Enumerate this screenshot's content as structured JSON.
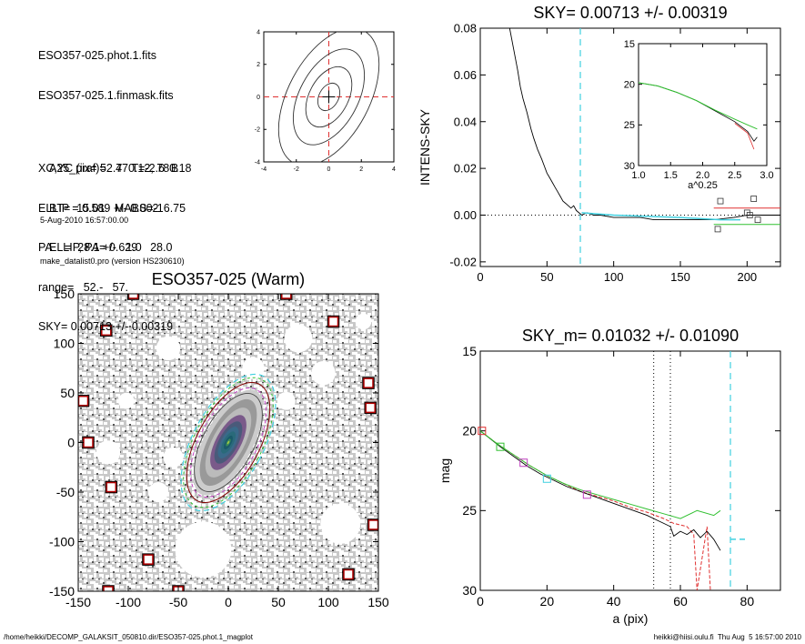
{
  "info": {
    "lines_main": [
      "ESO357-025.phot.1.fits",
      "ESO357-025.1.finmask.fits",
      "",
      "XC,YC (iraf)=   470.12, 780.18",
      "ELLIP = 0.589 +/- 0.002",
      "PA    =  28.1 +/-   1.0",
      "range=   52.-   57.",
      "SKY= 0.00713 +/- 0.00319"
    ],
    "lines_sub": [
      "A25_pix= 52.7   T=-2.6  B",
      "BT=  15.01   MABS=-16.75",
      "ELLIP, PA= 0.629    28.0"
    ],
    "date": "5-Aug-2010 16:57:00.00",
    "program": "make_datalist0.pro (version HS230610)"
  },
  "footer": {
    "left": "/home/heikki/DECOMP_GALAKSIT_050810.dir/ESO357-025.phot.1_magplot",
    "right": "heikki@hiisi.oulu.fi  Thu Aug  5 16:57:00 2010"
  },
  "colors": {
    "red": "#e03030",
    "green": "#30c030",
    "cyan": "#40d0e0",
    "purple": "#c040c0",
    "dark_red": "#800000",
    "gray": "#888888"
  },
  "chart_data": [
    {
      "id": "center-contour",
      "type": "contour",
      "xlim": [
        -4,
        4
      ],
      "ylim": [
        -4,
        4
      ],
      "xticks": [
        -4,
        -2,
        0,
        2,
        4
      ],
      "yticks": [
        -4,
        -2,
        0,
        2,
        4
      ],
      "marker": [
        0,
        0
      ]
    },
    {
      "id": "sky-profile",
      "type": "line",
      "title": "SKY= 0.00713 +/- 0.00319",
      "xlabel": "",
      "ylabel": "INTENS-SKY",
      "xlim": [
        0,
        225
      ],
      "ylim": [
        -0.022,
        0.08
      ],
      "xticks": [
        0,
        50,
        100,
        150,
        200
      ],
      "yticks": [
        -0.02,
        0.0,
        0.02,
        0.04,
        0.06,
        0.08
      ],
      "ytick_labels": [
        "-0.02",
        "0.00",
        "0.02",
        "0.04",
        "0.06",
        "0.08"
      ],
      "vline": 75,
      "series_black": [
        [
          22,
          0.08
        ],
        [
          25,
          0.071
        ],
        [
          28,
          0.062
        ],
        [
          30,
          0.055
        ],
        [
          32,
          0.05
        ],
        [
          35,
          0.044
        ],
        [
          38,
          0.037
        ],
        [
          40,
          0.033
        ],
        [
          43,
          0.028
        ],
        [
          46,
          0.024
        ],
        [
          48,
          0.021
        ],
        [
          50,
          0.018
        ],
        [
          52,
          0.016
        ],
        [
          54,
          0.014
        ],
        [
          56,
          0.012
        ],
        [
          58,
          0.01
        ],
        [
          60,
          0.008
        ],
        [
          62,
          0.006
        ],
        [
          64,
          0.005
        ],
        [
          66,
          0.004
        ],
        [
          68,
          0.003
        ],
        [
          70,
          0.004
        ],
        [
          72,
          0.002
        ],
        [
          74,
          0.001
        ],
        [
          76,
          0.0
        ],
        [
          80,
          0.001
        ],
        [
          85,
          0.0
        ],
        [
          90,
          0.0
        ],
        [
          100,
          -0.001
        ],
        [
          110,
          -0.001
        ],
        [
          120,
          -0.001
        ],
        [
          130,
          -0.002
        ],
        [
          140,
          -0.002
        ],
        [
          150,
          -0.002
        ],
        [
          160,
          -0.002
        ],
        [
          175,
          -0.002
        ],
        [
          190,
          -0.001
        ],
        [
          200,
          0.0
        ],
        [
          210,
          0.0
        ],
        [
          225,
          0.0
        ]
      ],
      "series_cyan": [
        [
          76,
          0.001
        ],
        [
          100,
          0.0
        ],
        [
          150,
          -0.001
        ],
        [
          180,
          -0.002
        ],
        [
          195,
          -0.002
        ]
      ],
      "series_green": [
        [
          175,
          -0.004
        ],
        [
          225,
          -0.004
        ]
      ],
      "series_red": [
        [
          175,
          0.003
        ],
        [
          225,
          0.003
        ]
      ],
      "squares": [
        [
          178,
          -0.006
        ],
        [
          180,
          0.006
        ],
        [
          200,
          0.001
        ],
        [
          202,
          0.0
        ],
        [
          205,
          0.007
        ],
        [
          208,
          -0.002
        ]
      ]
    },
    {
      "id": "inset-profile",
      "type": "line",
      "xlabel": "a^0.25",
      "xlim": [
        1.0,
        3.0
      ],
      "ylim": [
        30,
        15
      ],
      "xticks": [
        1.0,
        1.5,
        2.0,
        2.5,
        3.0
      ],
      "xtick_labels": [
        "1.0",
        "1.5",
        "2.0",
        "2.5",
        "3.0"
      ],
      "yticks": [
        15,
        20,
        25,
        30
      ],
      "series_green": [
        [
          1.0,
          19.8
        ],
        [
          1.3,
          20.2
        ],
        [
          1.6,
          21.0
        ],
        [
          1.9,
          22.0
        ],
        [
          2.2,
          23.2
        ],
        [
          2.5,
          24.3
        ],
        [
          2.7,
          25.0
        ],
        [
          2.85,
          25.5
        ]
      ],
      "series_black": [
        [
          1.0,
          19.8
        ],
        [
          1.3,
          20.2
        ],
        [
          1.6,
          21.0
        ],
        [
          1.9,
          22.0
        ],
        [
          2.2,
          23.3
        ],
        [
          2.5,
          24.6
        ],
        [
          2.7,
          25.8
        ],
        [
          2.8,
          27.0
        ],
        [
          2.85,
          26.5
        ]
      ],
      "series_red": [
        [
          2.5,
          24.8
        ],
        [
          2.7,
          26.0
        ],
        [
          2.8,
          28.0
        ]
      ]
    },
    {
      "id": "galaxy-image",
      "type": "image",
      "title": "ESO357-025 (Warm)",
      "xlim": [
        -150,
        150
      ],
      "ylim": [
        -150,
        150
      ],
      "xticks": [
        -150,
        -100,
        -50,
        0,
        50,
        100,
        150
      ],
      "yticks": [
        -150,
        -100,
        -50,
        0,
        50,
        100,
        150
      ],
      "ellipse_pa_deg": 28.1,
      "ellipse_axis_ratio": 0.411,
      "outer_ellipse_semi_major": 75,
      "mask_boxes": [
        [
          -122,
          113
        ],
        [
          -145,
          42
        ],
        [
          -140,
          0
        ],
        [
          -117,
          -45
        ],
        [
          -120,
          -150
        ],
        [
          -80,
          -118
        ],
        [
          -50,
          -150
        ],
        [
          58,
          150
        ],
        [
          105,
          122
        ],
        [
          140,
          60
        ],
        [
          142,
          35
        ],
        [
          145,
          -83
        ],
        [
          120,
          -133
        ],
        [
          -95,
          150
        ]
      ]
    },
    {
      "id": "mag-profile",
      "type": "line",
      "title": "SKY_m=  0.01032 +/- 0.01090",
      "xlabel": "a (pix)",
      "ylabel": "mag",
      "xlim": [
        0,
        90
      ],
      "ylim": [
        30,
        15
      ],
      "xticks": [
        0,
        20,
        40,
        60,
        80
      ],
      "yticks": [
        15,
        20,
        25,
        30
      ],
      "vlines_dotted": [
        52,
        57
      ],
      "vline_dashed": 75,
      "series_black": [
        [
          0,
          20.0
        ],
        [
          3,
          20.5
        ],
        [
          6,
          21.0
        ],
        [
          10,
          21.6
        ],
        [
          14,
          22.2
        ],
        [
          18,
          22.7
        ],
        [
          22,
          23.1
        ],
        [
          26,
          23.5
        ],
        [
          30,
          23.8
        ],
        [
          34,
          24.1
        ],
        [
          38,
          24.4
        ],
        [
          42,
          24.7
        ],
        [
          46,
          25.0
        ],
        [
          50,
          25.3
        ],
        [
          53,
          25.6
        ],
        [
          55,
          25.8
        ],
        [
          57,
          26.0
        ],
        [
          58,
          26.6
        ],
        [
          60,
          26.3
        ],
        [
          62,
          26.5
        ],
        [
          64,
          26.2
        ],
        [
          66,
          26.7
        ],
        [
          68,
          26.3
        ],
        [
          70,
          26.8
        ],
        [
          72,
          27.5
        ]
      ],
      "series_green": [
        [
          0,
          20.0
        ],
        [
          5,
          20.8
        ],
        [
          10,
          21.5
        ],
        [
          15,
          22.2
        ],
        [
          20,
          22.8
        ],
        [
          25,
          23.3
        ],
        [
          30,
          23.7
        ],
        [
          35,
          24.0
        ],
        [
          40,
          24.3
        ],
        [
          45,
          24.6
        ],
        [
          50,
          24.9
        ],
        [
          55,
          25.2
        ],
        [
          60,
          25.5
        ],
        [
          65,
          25.0
        ],
        [
          70,
          25.3
        ],
        [
          72,
          25.0
        ]
      ],
      "series_red": [
        [
          0,
          20.0
        ],
        [
          5,
          20.8
        ],
        [
          10,
          21.5
        ],
        [
          15,
          22.2
        ],
        [
          20,
          22.8
        ],
        [
          25,
          23.3
        ],
        [
          30,
          23.8
        ],
        [
          35,
          24.1
        ],
        [
          40,
          24.4
        ],
        [
          45,
          24.8
        ],
        [
          50,
          25.1
        ],
        [
          55,
          25.5
        ],
        [
          58,
          25.8
        ],
        [
          60,
          25.9
        ],
        [
          62,
          26.0
        ],
        [
          64,
          26.5
        ],
        [
          65,
          30.0
        ],
        [
          68,
          26.0
        ],
        [
          69,
          30.0
        ]
      ],
      "series_cyan": [
        [
          75,
          26.8
        ],
        [
          80,
          26.8
        ]
      ],
      "markers": [
        {
          "x": 0.5,
          "y": 20.0,
          "color": "red"
        },
        {
          "x": 6,
          "y": 21.0,
          "color": "green"
        },
        {
          "x": 13,
          "y": 22.0,
          "color": "purple"
        },
        {
          "x": 20,
          "y": 23.0,
          "color": "cyan"
        },
        {
          "x": 32,
          "y": 24.0,
          "color": "purple"
        }
      ]
    }
  ]
}
